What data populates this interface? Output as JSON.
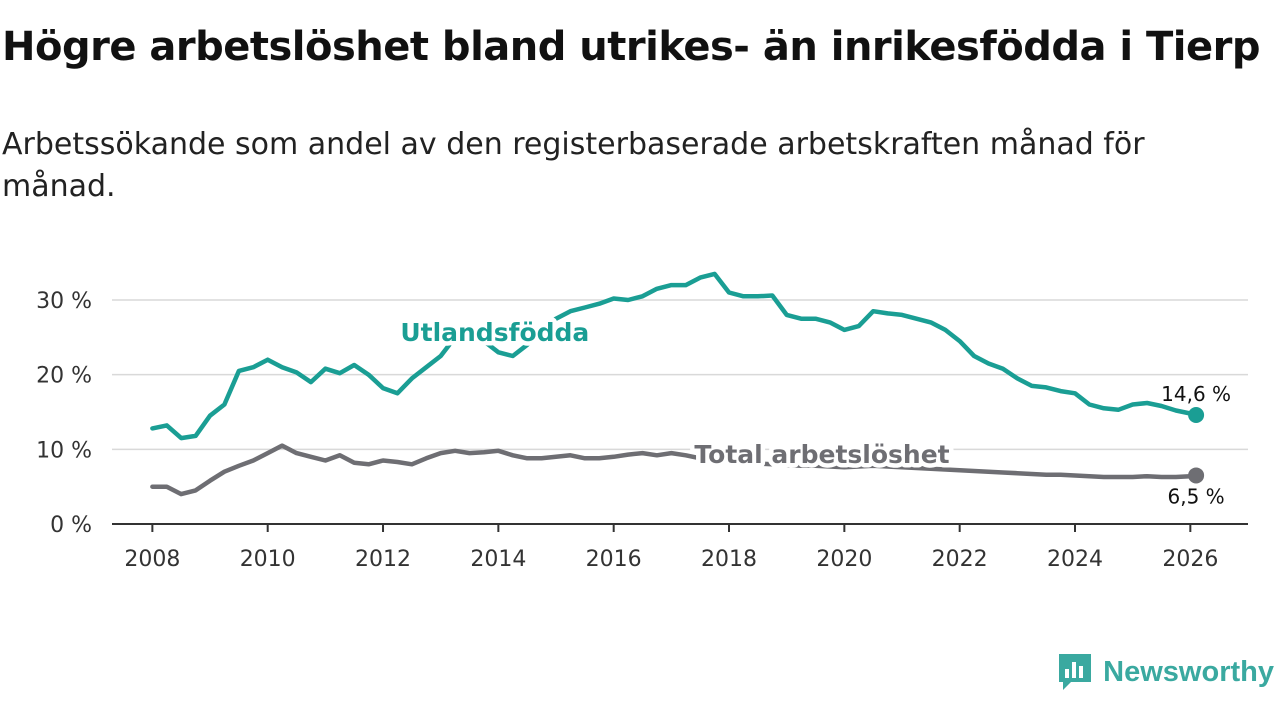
{
  "title": "Högre arbetslöshet bland utrikes- än inrikesfödda i Tierp",
  "subtitle": "Arbetssökande som andel av den registerbaserade arbetskraften månad för månad.",
  "brand": {
    "name": "Newsworthy",
    "icon": "newsworthy-logo-icon",
    "color": "#3aa9a0"
  },
  "chart_data": {
    "type": "line",
    "title": "Högre arbetslöshet bland utrikes- än inrikesfödda i Tierp",
    "xlabel": "",
    "ylabel": "",
    "xlim": [
      2007.3,
      2027.0
    ],
    "ylim": [
      0,
      30
    ],
    "y_ticks": [
      0,
      10,
      20,
      30
    ],
    "y_tick_labels": [
      "0 %",
      "10 %",
      "20 %",
      "30 %"
    ],
    "x_ticks": [
      2008,
      2010,
      2012,
      2014,
      2016,
      2018,
      2020,
      2022,
      2024,
      2026
    ],
    "x_tick_labels": [
      "2008",
      "2010",
      "2012",
      "2014",
      "2016",
      "2018",
      "2020",
      "2022",
      "2024",
      "2026"
    ],
    "grid": true,
    "series": [
      {
        "name": "Utlandsfödda",
        "color": "#1a9e94",
        "end_label": "14,6 %",
        "x": [
          2008.0,
          2008.25,
          2008.5,
          2008.75,
          2009.0,
          2009.25,
          2009.5,
          2009.75,
          2010.0,
          2010.25,
          2010.5,
          2010.75,
          2011.0,
          2011.25,
          2011.5,
          2011.75,
          2012.0,
          2012.25,
          2012.5,
          2012.75,
          2013.0,
          2013.25,
          2013.5,
          2013.75,
          2014.0,
          2014.25,
          2014.5,
          2014.75,
          2015.0,
          2015.25,
          2015.5,
          2015.75,
          2016.0,
          2016.25,
          2016.5,
          2016.75,
          2017.0,
          2017.25,
          2017.5,
          2017.75,
          2018.0,
          2018.25,
          2018.5,
          2018.75,
          2019.0,
          2019.25,
          2019.5,
          2019.75,
          2020.0,
          2020.25,
          2020.5,
          2020.75,
          2021.0,
          2021.25,
          2021.5,
          2021.75,
          2022.0,
          2022.25,
          2022.5,
          2022.75,
          2023.0,
          2023.25,
          2023.5,
          2023.75,
          2024.0,
          2024.25,
          2024.5,
          2024.75,
          2025.0,
          2025.25,
          2025.5,
          2025.75,
          2026.0,
          2026.1
        ],
        "values": [
          12.8,
          13.2,
          11.5,
          11.8,
          14.5,
          16.0,
          20.5,
          21.0,
          22.0,
          21.0,
          20.3,
          19.0,
          20.8,
          20.2,
          21.3,
          20.0,
          18.2,
          17.5,
          19.5,
          21.0,
          22.5,
          25.0,
          26.0,
          24.5,
          23.0,
          22.5,
          24.0,
          26.0,
          27.5,
          28.5,
          29.0,
          29.5,
          30.2,
          30.0,
          30.5,
          31.5,
          32.0,
          32.0,
          33.0,
          33.5,
          31.0,
          30.5,
          30.5,
          30.6,
          28.0,
          27.5,
          27.5,
          27.0,
          26.0,
          26.5,
          28.5,
          28.2,
          28.0,
          27.5,
          27.0,
          26.0,
          24.5,
          22.5,
          21.5,
          20.8,
          19.5,
          18.5,
          18.3,
          17.8,
          17.5,
          16.0,
          15.5,
          15.3,
          16.0,
          16.2,
          15.8,
          15.2,
          14.8,
          14.6
        ]
      },
      {
        "name": "Total arbetslöshet",
        "color": "#6e6e73",
        "end_label": "6,5 %",
        "x": [
          2008.0,
          2008.25,
          2008.5,
          2008.75,
          2009.0,
          2009.25,
          2009.5,
          2009.75,
          2010.0,
          2010.25,
          2010.5,
          2010.75,
          2011.0,
          2011.25,
          2011.5,
          2011.75,
          2012.0,
          2012.25,
          2012.5,
          2012.75,
          2013.0,
          2013.25,
          2013.5,
          2013.75,
          2014.0,
          2014.25,
          2014.5,
          2014.75,
          2015.0,
          2015.25,
          2015.5,
          2015.75,
          2016.0,
          2016.25,
          2016.5,
          2016.75,
          2017.0,
          2017.25,
          2017.5,
          2017.75,
          2018.0,
          2018.25,
          2018.5,
          2018.75,
          2019.0,
          2019.25,
          2019.5,
          2019.75,
          2020.0,
          2020.25,
          2020.5,
          2020.75,
          2021.0,
          2021.25,
          2021.5,
          2021.75,
          2022.0,
          2022.25,
          2022.5,
          2022.75,
          2023.0,
          2023.25,
          2023.5,
          2023.75,
          2024.0,
          2024.25,
          2024.5,
          2024.75,
          2025.0,
          2025.25,
          2025.5,
          2025.75,
          2026.0,
          2026.1
        ],
        "values": [
          5.0,
          5.0,
          4.0,
          4.5,
          5.8,
          7.0,
          7.8,
          8.5,
          9.5,
          10.5,
          9.5,
          9.0,
          8.5,
          9.2,
          8.2,
          8.0,
          8.5,
          8.3,
          8.0,
          8.8,
          9.5,
          9.8,
          9.5,
          9.6,
          9.8,
          9.2,
          8.8,
          8.8,
          9.0,
          9.2,
          8.8,
          8.8,
          9.0,
          9.3,
          9.5,
          9.2,
          9.5,
          9.2,
          8.8,
          8.5,
          8.3,
          8.2,
          8.1,
          8.0,
          7.9,
          7.8,
          7.8,
          7.7,
          7.6,
          7.7,
          7.8,
          7.7,
          7.6,
          7.5,
          7.4,
          7.3,
          7.2,
          7.1,
          7.0,
          6.9,
          6.8,
          6.7,
          6.6,
          6.6,
          6.5,
          6.4,
          6.3,
          6.3,
          6.3,
          6.4,
          6.3,
          6.3,
          6.4,
          6.5
        ]
      }
    ],
    "annotations": [
      {
        "text": "Utlandsfödda",
        "series": "Utlandsfödda",
        "x": 2012.3,
        "y": 24.5
      },
      {
        "text": "Total arbetslöshet",
        "series": "Total arbetslöshet",
        "x": 2017.4,
        "y": 8.2
      }
    ]
  }
}
